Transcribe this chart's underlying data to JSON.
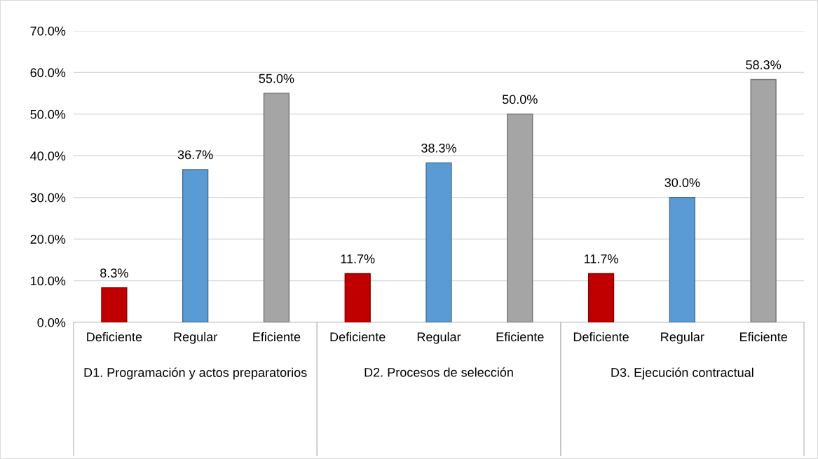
{
  "chart_data": {
    "type": "bar",
    "categories": [
      "Deficiente",
      "Regular",
      "Eficiente",
      "Deficiente",
      "Regular",
      "Eficiente",
      "Deficiente",
      "Regular",
      "Eficiente"
    ],
    "values": [
      8.3,
      36.7,
      55.0,
      11.7,
      38.3,
      50.0,
      11.7,
      30.0,
      58.3
    ],
    "colors": [
      "#c00000",
      "#5b9bd5",
      "#a5a5a5",
      "#c00000",
      "#5b9bd5",
      "#a5a5a5",
      "#c00000",
      "#5b9bd5",
      "#a5a5a5"
    ],
    "value_labels": [
      "8.3%",
      "36.7%",
      "55.0%",
      "11.7%",
      "38.3%",
      "50.0%",
      "11.7%",
      "30.0%",
      "58.3%"
    ],
    "ylim": [
      0,
      70
    ],
    "yticks": [
      {
        "value": 0,
        "label": "0.0%"
      },
      {
        "value": 10,
        "label": "10.0%"
      },
      {
        "value": 20,
        "label": "20.0%"
      },
      {
        "value": 30,
        "label": "30.0%"
      },
      {
        "value": 40,
        "label": "40.0%"
      },
      {
        "value": 50,
        "label": "50.0%"
      },
      {
        "value": 60,
        "label": "60.0%"
      },
      {
        "value": 70,
        "label": "70.0%"
      }
    ],
    "grid": "y",
    "legend": false,
    "annotations": [
      "D1. Programación y actos preparatorios",
      "D2. Procesos de selección",
      "D3. Ejecución contractual"
    ]
  }
}
